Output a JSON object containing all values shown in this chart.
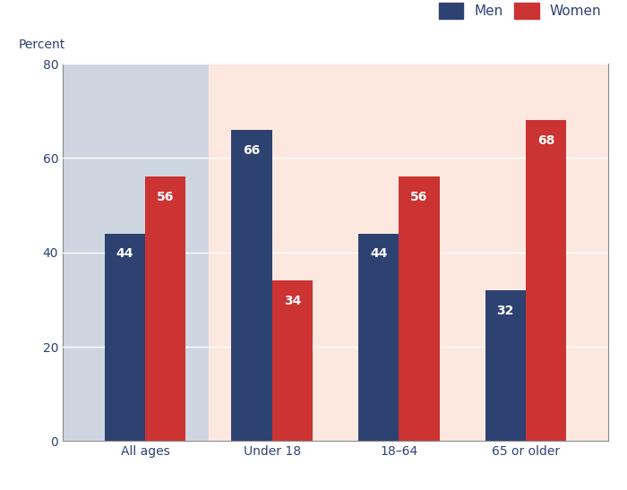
{
  "categories": [
    "All ages",
    "Under 18",
    "18–64",
    "65 or older"
  ],
  "men_values": [
    44,
    66,
    44,
    32
  ],
  "women_values": [
    56,
    34,
    56,
    68
  ],
  "men_color": "#2e4272",
  "women_color": "#cc3333",
  "bg_left_color": "#cdd5e0",
  "bg_right_color": "#fde8e0",
  "ylabel": "Percent",
  "ylim": [
    0,
    80
  ],
  "yticks": [
    0,
    20,
    40,
    60,
    80
  ],
  "legend_men": "Men",
  "legend_women": "Women",
  "bar_width": 0.32,
  "label_fontsize": 10,
  "tick_fontsize": 10,
  "ylabel_fontsize": 10,
  "legend_fontsize": 11,
  "axis_label_color": "#2e4272",
  "grid_color": "#ffffff",
  "spine_color": "#888888"
}
